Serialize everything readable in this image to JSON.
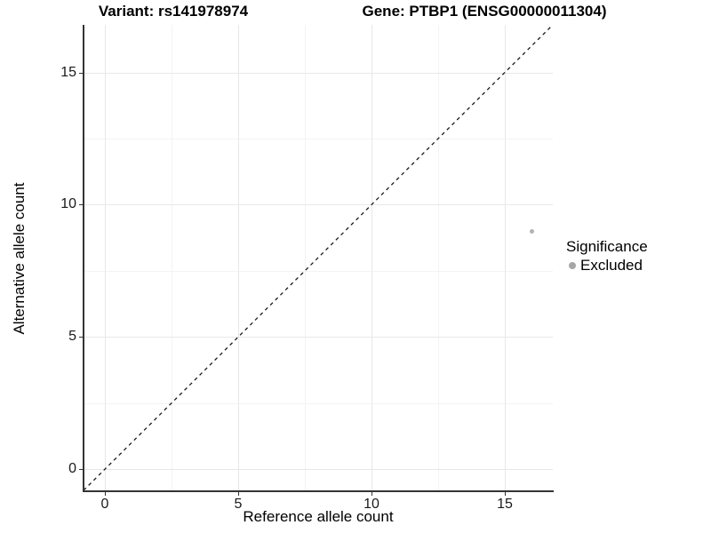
{
  "figure": {
    "title_left": "Variant: rs141978974",
    "title_right": "Gene: PTBP1 (ENSG00000011304)"
  },
  "chart_data": {
    "type": "scatter",
    "title": "Variant: rs141978974 | Gene: PTBP1 (ENSG00000011304)",
    "xlabel": "Reference allele count",
    "ylabel": "Alternative allele count",
    "xlim": [
      -0.8,
      16.8
    ],
    "ylim": [
      -0.8,
      16.8
    ],
    "x_major_ticks": [
      0,
      5,
      10,
      15
    ],
    "y_major_ticks": [
      0,
      5,
      10,
      15
    ],
    "x_minor_gridlines": [
      2.5,
      7.5,
      12.5
    ],
    "y_minor_gridlines": [
      2.5,
      7.5,
      12.5
    ],
    "grid": true,
    "series": [
      {
        "name": "Excluded",
        "points": [
          {
            "x": 16,
            "y": 9
          }
        ]
      }
    ],
    "reference_line": {
      "kind": "identity",
      "equation": "y = x",
      "style": "dashed"
    },
    "legend": {
      "title": "Significance",
      "position": "right",
      "entries": [
        {
          "label": "Excluded",
          "color": "#a6a6a6"
        }
      ]
    }
  },
  "colors": {
    "background": "#ffffff",
    "axis_line": "#333333",
    "grid_major": "#e8e8e8",
    "grid_minor": "#f3f3f3",
    "dashed_line": "#1a1a1a",
    "point": "#b3b3b3",
    "legend_key": "#a6a6a6",
    "text": "#000000",
    "tick_label": "#1a1a1a"
  }
}
